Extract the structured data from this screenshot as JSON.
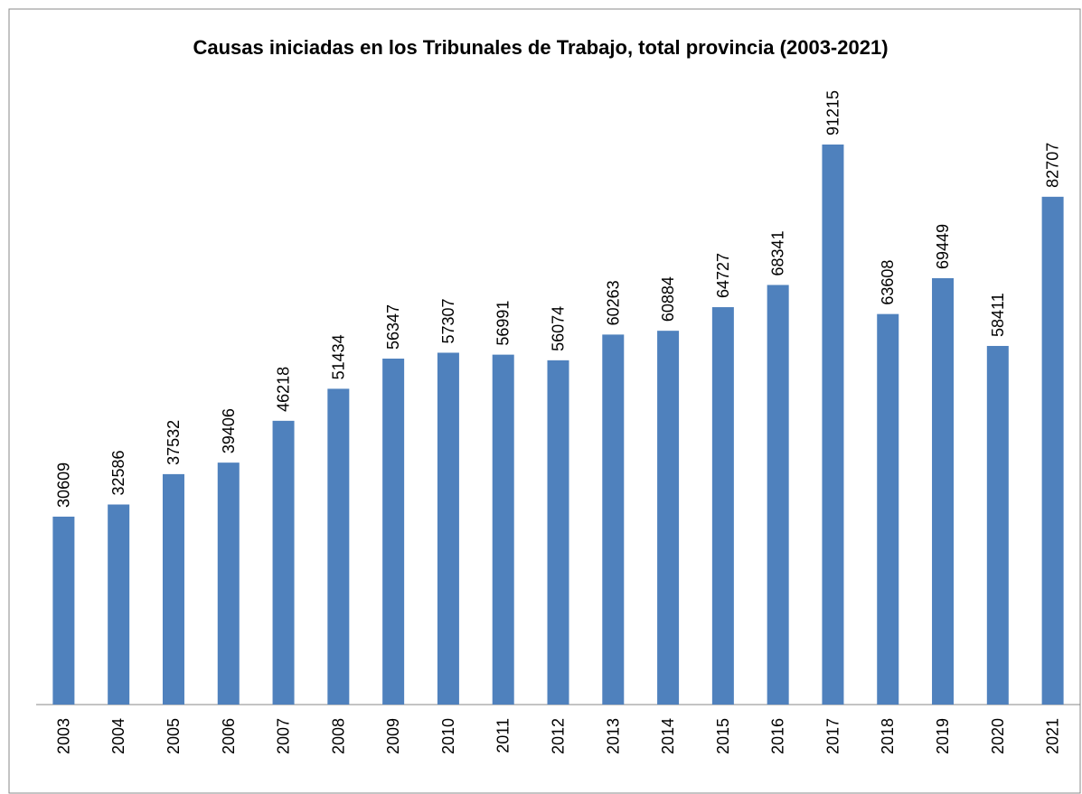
{
  "chart_data": {
    "type": "bar",
    "title": "Causas iniciadas en los Tribunales de Trabajo, total provincia (2003-2021)",
    "categories": [
      "2003",
      "2004",
      "2005",
      "2006",
      "2007",
      "2008",
      "2009",
      "2010",
      "2011",
      "2012",
      "2013",
      "2014",
      "2015",
      "2016",
      "2017",
      "2018",
      "2019",
      "2020",
      "2021"
    ],
    "values": [
      30609,
      32586,
      37532,
      39406,
      46218,
      51434,
      56347,
      57307,
      56991,
      56074,
      60263,
      60884,
      64727,
      68341,
      91215,
      63608,
      69449,
      58411,
      82707
    ],
    "color": "#4f81bd"
  }
}
